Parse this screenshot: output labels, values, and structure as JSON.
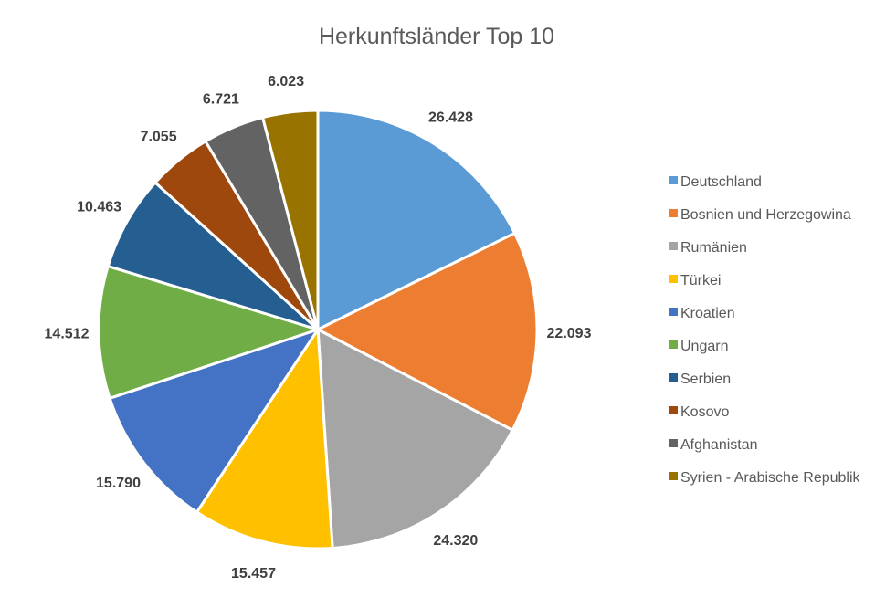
{
  "chart_data": {
    "type": "pie",
    "title": "Herkunftsländer Top 10",
    "legend_position": "right",
    "slices": [
      {
        "label": "Deutschland",
        "value": 26428,
        "display": "26.428",
        "color": "#5B9BD5"
      },
      {
        "label": "Bosnien und Herzegowina",
        "value": 22093,
        "display": "22.093",
        "color": "#ED7D31"
      },
      {
        "label": "Rumänien",
        "value": 24320,
        "display": "24.320",
        "color": "#A5A5A5"
      },
      {
        "label": "Türkei",
        "value": 15457,
        "display": "15.457",
        "color": "#FFC000"
      },
      {
        "label": "Kroatien",
        "value": 15790,
        "display": "15.790",
        "color": "#4472C4"
      },
      {
        "label": "Ungarn",
        "value": 14512,
        "display": "14.512",
        "color": "#70AD47"
      },
      {
        "label": "Serbien",
        "value": 10463,
        "display": "10.463",
        "color": "#255E91"
      },
      {
        "label": "Kosovo",
        "value": 7055,
        "display": "7.055",
        "color": "#9E480E"
      },
      {
        "label": "Afghanistan",
        "value": 6721,
        "display": "6.721",
        "color": "#636363"
      },
      {
        "label": "Syrien - Arabische Republik",
        "value": 6023,
        "display": "6.023",
        "color": "#997300"
      }
    ]
  }
}
